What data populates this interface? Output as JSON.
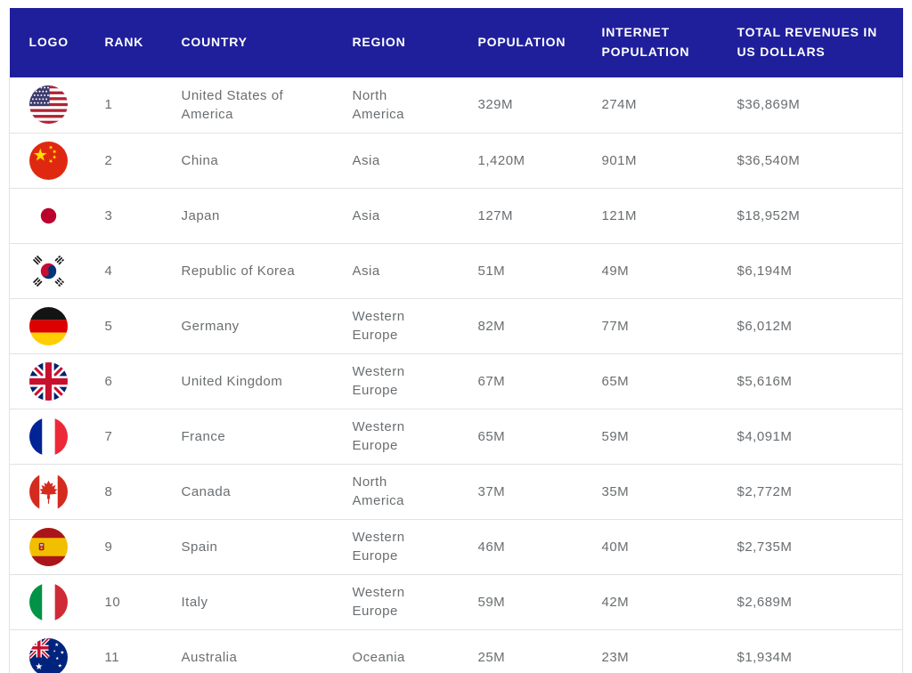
{
  "table": {
    "columns": [
      {
        "key": "logo",
        "label": "LOGO"
      },
      {
        "key": "rank",
        "label": "RANK"
      },
      {
        "key": "country",
        "label": "COUNTRY"
      },
      {
        "key": "region",
        "label": "REGION"
      },
      {
        "key": "population",
        "label": "POPULATION"
      },
      {
        "key": "internet_population",
        "label": "INTERNET POPULATION"
      },
      {
        "key": "revenue",
        "label": "TOTAL REVENUES IN US DOLLARS"
      }
    ],
    "rows": [
      {
        "flag": "usa-flag-icon",
        "rank": "1",
        "country": "United States of America",
        "region": "North America",
        "population": "329M",
        "internet_population": "274M",
        "revenue": "$36,869M"
      },
      {
        "flag": "china-flag-icon",
        "rank": "2",
        "country": "China",
        "region": "Asia",
        "population": "1,420M",
        "internet_population": "901M",
        "revenue": "$36,540M"
      },
      {
        "flag": "japan-flag-icon",
        "rank": "3",
        "country": "Japan",
        "region": "Asia",
        "population": "127M",
        "internet_population": "121M",
        "revenue": "$18,952M"
      },
      {
        "flag": "south-korea-flag-icon",
        "rank": "4",
        "country": "Republic of Korea",
        "region": "Asia",
        "population": "51M",
        "internet_population": "49M",
        "revenue": "$6,194M"
      },
      {
        "flag": "germany-flag-icon",
        "rank": "5",
        "country": "Germany",
        "region": "Western Europe",
        "population": "82M",
        "internet_population": "77M",
        "revenue": "$6,012M"
      },
      {
        "flag": "uk-flag-icon",
        "rank": "6",
        "country": "United Kingdom",
        "region": "Western Europe",
        "population": "67M",
        "internet_population": "65M",
        "revenue": "$5,616M"
      },
      {
        "flag": "france-flag-icon",
        "rank": "7",
        "country": "France",
        "region": "Western Europe",
        "population": "65M",
        "internet_population": "59M",
        "revenue": "$4,091M"
      },
      {
        "flag": "canada-flag-icon",
        "rank": "8",
        "country": "Canada",
        "region": "North America",
        "population": "37M",
        "internet_population": "35M",
        "revenue": "$2,772M"
      },
      {
        "flag": "spain-flag-icon",
        "rank": "9",
        "country": "Spain",
        "region": "Western Europe",
        "population": "46M",
        "internet_population": "40M",
        "revenue": "$2,735M"
      },
      {
        "flag": "italy-flag-icon",
        "rank": "10",
        "country": "Italy",
        "region": "Western Europe",
        "population": "59M",
        "internet_population": "42M",
        "revenue": "$2,689M"
      },
      {
        "flag": "australia-flag-icon",
        "rank": "11",
        "country": "Australia",
        "region": "Oceania",
        "population": "25M",
        "internet_population": "23M",
        "revenue": "$1,934M"
      }
    ]
  },
  "colors": {
    "header_bg": "#1F1F9C",
    "header_text": "#FFFFFF",
    "body_text": "#6A6E71",
    "row_border": "#E2E2E4"
  }
}
